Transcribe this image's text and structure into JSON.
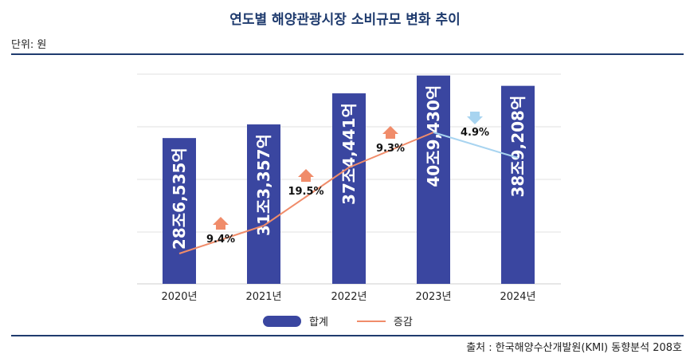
{
  "title": "연도별 해양관광시장 소비규모 변화 추이",
  "unit_label": "단위: 원",
  "source": "출처 : 한국해양수산개발원(KMI) 동향분석 208호",
  "colors": {
    "bar": "#3a46a0",
    "line_up": "#f08c6a",
    "line_down": "#a8d4f0",
    "arrow_up": "#f08c6a",
    "arrow_down": "#a8d4f0",
    "title": "#1f3b6e"
  },
  "chart_data": {
    "type": "bar",
    "categories": [
      "2020년",
      "2021년",
      "2022년",
      "2023년",
      "2024년"
    ],
    "series": [
      {
        "name": "합계",
        "values": [
          286535,
          313357,
          374441,
          409430,
          389208
        ],
        "labels": [
          "28조6,535억",
          "31조3,357억",
          "37조4,441억",
          "40조9,430억",
          "38조9,208억"
        ]
      },
      {
        "name": "증감",
        "type": "line",
        "change_labels": [
          "",
          "9.4%",
          "19.5%",
          "9.3%",
          "4.9%"
        ],
        "direction": [
          "",
          "up",
          "up",
          "up",
          "down"
        ]
      }
    ],
    "ylim": [
      0,
      420000
    ],
    "grid": true,
    "legend_position": "bottom"
  },
  "legend": {
    "bar_label": "합계",
    "line_label": "증감"
  }
}
